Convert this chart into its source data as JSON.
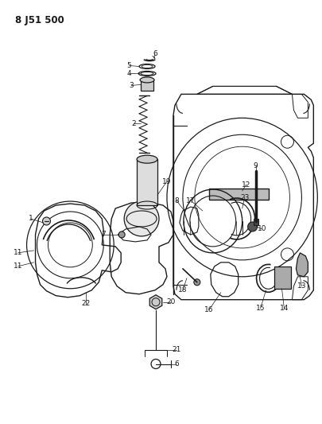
{
  "title": "8 J51 500",
  "bg_color": "#ffffff",
  "fg_color": "#1a1a1a",
  "fig_width": 4.05,
  "fig_height": 5.33,
  "dpi": 100
}
